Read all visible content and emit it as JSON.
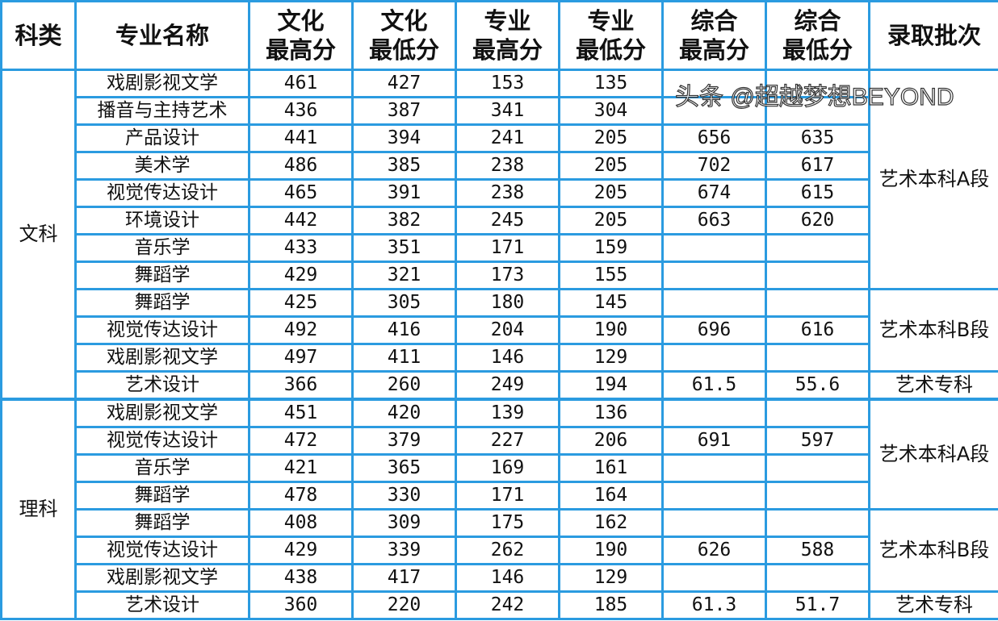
{
  "headers": [
    "科类",
    "专业名称",
    "文化\n最高分",
    "文化\n最低分",
    "专业\n最高分",
    "专业\n最低分",
    "综合\n最高分",
    "综合\n最低分",
    "录取批次"
  ],
  "groups": [
    {
      "name": "文科",
      "rows": [
        [
          "戏剧影视文学",
          "461",
          "427",
          "153",
          "135",
          "",
          ""
        ],
        [
          "播音与主持艺术",
          "436",
          "387",
          "341",
          "304",
          "",
          ""
        ],
        [
          "产品设计",
          "441",
          "394",
          "241",
          "205",
          "656",
          "635"
        ],
        [
          "美术学",
          "486",
          "385",
          "238",
          "205",
          "702",
          "617"
        ],
        [
          "视觉传达设计",
          "465",
          "391",
          "238",
          "205",
          "674",
          "615"
        ],
        [
          "环境设计",
          "442",
          "382",
          "245",
          "205",
          "663",
          "620"
        ],
        [
          "音乐学",
          "433",
          "351",
          "171",
          "159",
          "",
          ""
        ],
        [
          "舞蹈学",
          "429",
          "321",
          "173",
          "155",
          "",
          ""
        ],
        [
          "舞蹈学",
          "425",
          "305",
          "180",
          "145",
          "",
          ""
        ],
        [
          "视觉传达设计",
          "492",
          "416",
          "204",
          "190",
          "696",
          "616"
        ],
        [
          "戏剧影视文学",
          "497",
          "411",
          "146",
          "129",
          "",
          ""
        ],
        [
          "艺术设计",
          "366",
          "260",
          "249",
          "194",
          "61.5",
          "55.6"
        ]
      ],
      "batches": [
        {
          "label": "艺术本科A段",
          "span": 8
        },
        {
          "label": "艺术本科B段",
          "span": 3
        },
        {
          "label": "艺术专科",
          "span": 1
        }
      ]
    },
    {
      "name": "理科",
      "rows": [
        [
          "戏剧影视文学",
          "451",
          "420",
          "139",
          "136",
          "",
          ""
        ],
        [
          "视觉传达设计",
          "472",
          "379",
          "227",
          "206",
          "691",
          "597"
        ],
        [
          "音乐学",
          "421",
          "365",
          "169",
          "161",
          "",
          ""
        ],
        [
          "舞蹈学",
          "478",
          "330",
          "171",
          "164",
          "",
          ""
        ],
        [
          "舞蹈学",
          "408",
          "309",
          "175",
          "162",
          "",
          ""
        ],
        [
          "视觉传达设计",
          "429",
          "339",
          "262",
          "190",
          "626",
          "588"
        ],
        [
          "戏剧影视文学",
          "438",
          "417",
          "146",
          "129",
          "",
          ""
        ],
        [
          "艺术设计",
          "360",
          "220",
          "242",
          "185",
          "61.3",
          "51.7"
        ]
      ],
      "batches": [
        {
          "label": "艺术本科A段",
          "span": 4
        },
        {
          "label": "艺术本科B段",
          "span": 3
        },
        {
          "label": "艺术专科",
          "span": 1
        }
      ]
    }
  ],
  "watermark": "头条 @超越梦想BEYOND",
  "colors": {
    "border": "#2b9be0"
  }
}
